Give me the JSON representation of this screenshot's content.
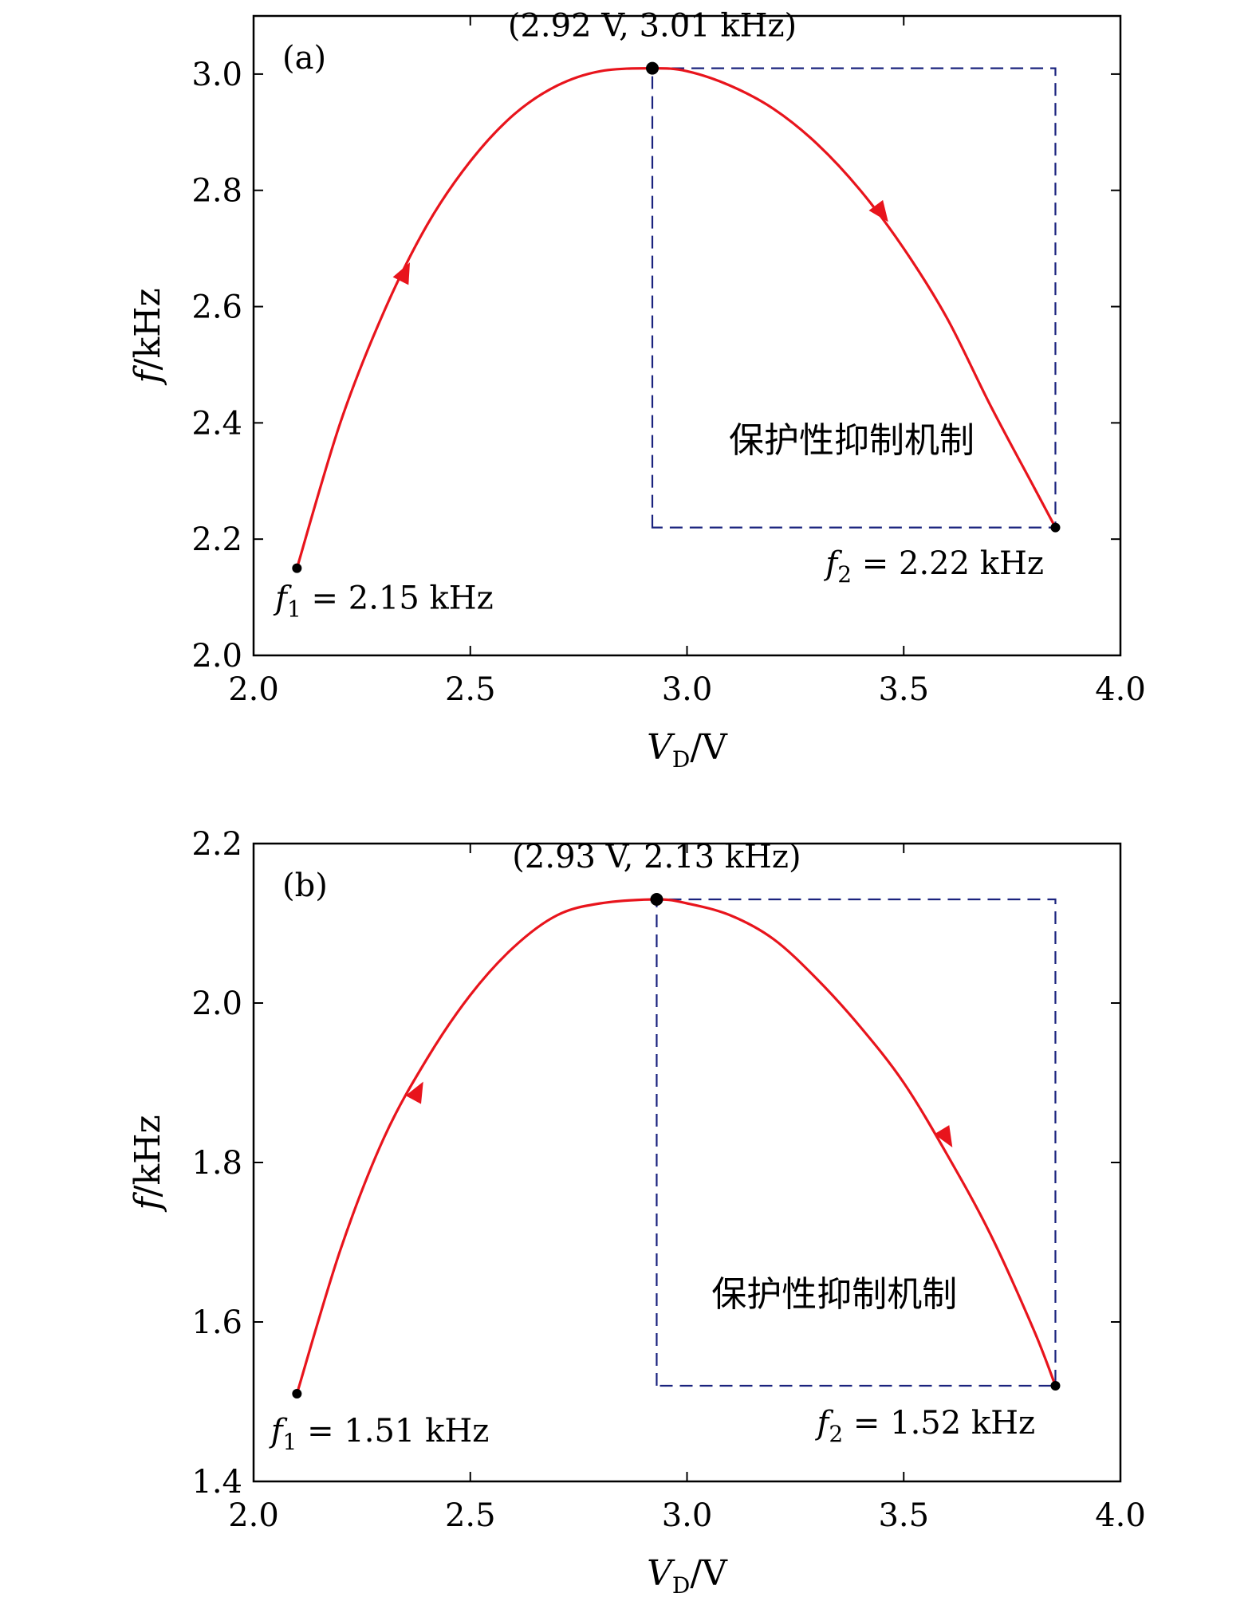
{
  "chart_data": [
    {
      "type": "line",
      "panel_label": "(a)",
      "xlabel": {
        "main": "V",
        "sub": "D",
        "unit": "/V"
      },
      "ylabel": {
        "main": "f",
        "unit": "/kHz"
      },
      "xlim": [
        2.0,
        4.0
      ],
      "ylim": [
        2.0,
        3.1
      ],
      "x_ticks": [
        2.0,
        2.5,
        3.0,
        3.5,
        4.0
      ],
      "x_tick_labels": [
        "2.0",
        "2.5",
        "3.0",
        "3.5",
        "4.0"
      ],
      "y_ticks": [
        2.0,
        2.2,
        2.4,
        2.6,
        2.8,
        3.0
      ],
      "y_tick_labels": [
        "2.0",
        "2.2",
        "2.4",
        "2.6",
        "2.8",
        "3.0"
      ],
      "series": [
        {
          "color": "#e8141c",
          "x": [
            2.1,
            2.2,
            2.3,
            2.4,
            2.5,
            2.6,
            2.7,
            2.8,
            2.92,
            3.0,
            3.1,
            3.2,
            3.3,
            3.4,
            3.5,
            3.6,
            3.7,
            3.8,
            3.85
          ],
          "y": [
            2.15,
            2.4,
            2.59,
            2.74,
            2.85,
            2.93,
            2.98,
            3.005,
            3.01,
            3.005,
            2.98,
            2.94,
            2.88,
            2.8,
            2.7,
            2.58,
            2.43,
            2.29,
            2.22
          ]
        }
      ],
      "direction_arrows": [
        {
          "x": 2.35,
          "y": 2.66,
          "direction": "up"
        },
        {
          "x": 3.45,
          "y": 2.76,
          "direction": "down"
        }
      ],
      "points": [
        {
          "x": 2.1,
          "y": 2.15
        },
        {
          "x": 2.92,
          "y": 3.01
        },
        {
          "x": 3.85,
          "y": 2.22
        }
      ],
      "peak_label": "(2.92 V, 3.01 kHz)",
      "peak_label_pos": {
        "x": 2.92,
        "y": 3.065
      },
      "start_label": {
        "var": "f",
        "sub": "1",
        "text": " = 2.15 kHz"
      },
      "start_label_pos": {
        "x": 2.05,
        "y": 2.08
      },
      "end_label": {
        "var": "f",
        "sub": "2",
        "text": " = 2.22 kHz"
      },
      "end_label_pos": {
        "x": 3.32,
        "y": 2.14
      },
      "region": {
        "x0": 2.92,
        "x1": 3.85,
        "y0": 2.22,
        "y1": 3.01,
        "color": "#1a237e"
      },
      "region_label": "保护性抑制机制",
      "region_label_pos": {
        "x": 3.38,
        "y": 2.35
      }
    },
    {
      "type": "line",
      "panel_label": "(b)",
      "xlabel": {
        "main": "V",
        "sub": "D",
        "unit": "/V"
      },
      "ylabel": {
        "main": "f",
        "unit": "/kHz"
      },
      "xlim": [
        2.0,
        4.0
      ],
      "ylim": [
        1.4,
        2.2
      ],
      "x_ticks": [
        2.0,
        2.5,
        3.0,
        3.5,
        4.0
      ],
      "x_tick_labels": [
        "2.0",
        "2.5",
        "3.0",
        "3.5",
        "4.0"
      ],
      "y_ticks": [
        1.4,
        1.6,
        1.8,
        2.0,
        2.2
      ],
      "y_tick_labels": [
        "1.4",
        "1.6",
        "1.8",
        "2.0",
        "2.2"
      ],
      "series": [
        {
          "color": "#e8141c",
          "x": [
            2.1,
            2.2,
            2.3,
            2.4,
            2.5,
            2.6,
            2.7,
            2.8,
            2.93,
            3.0,
            3.1,
            3.2,
            3.3,
            3.4,
            3.5,
            3.6,
            3.7,
            3.8,
            3.85
          ],
          "y": [
            1.51,
            1.69,
            1.83,
            1.93,
            2.01,
            2.07,
            2.11,
            2.125,
            2.13,
            2.125,
            2.11,
            2.08,
            2.03,
            1.97,
            1.9,
            1.81,
            1.71,
            1.59,
            1.52
          ]
        }
      ],
      "direction_arrows": [
        {
          "x": 2.38,
          "y": 1.89,
          "direction": "up"
        },
        {
          "x": 3.6,
          "y": 1.83,
          "direction": "down"
        }
      ],
      "points": [
        {
          "x": 2.1,
          "y": 1.51
        },
        {
          "x": 2.93,
          "y": 2.13
        },
        {
          "x": 3.85,
          "y": 1.52
        }
      ],
      "peak_label": "(2.93 V, 2.13 kHz)",
      "peak_label_pos": {
        "x": 2.93,
        "y": 2.17
      },
      "start_label": {
        "var": "f",
        "sub": "1",
        "text": " = 1.51 kHz"
      },
      "start_label_pos": {
        "x": 2.04,
        "y": 1.45
      },
      "end_label": {
        "var": "f",
        "sub": "2",
        "text": " = 1.52 kHz"
      },
      "end_label_pos": {
        "x": 3.3,
        "y": 1.46
      },
      "region": {
        "x0": 2.93,
        "x1": 3.85,
        "y0": 1.52,
        "y1": 2.13,
        "color": "#1a237e"
      },
      "region_label": "保护性抑制机制",
      "region_label_pos": {
        "x": 3.34,
        "y": 1.62
      }
    }
  ]
}
